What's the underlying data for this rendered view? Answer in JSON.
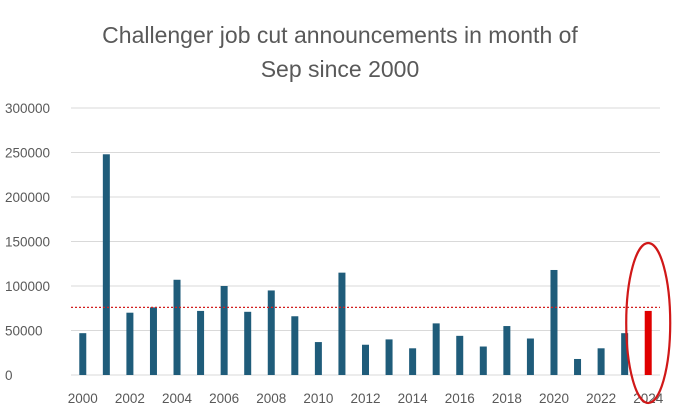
{
  "chart_data": {
    "type": "bar",
    "title_lines": [
      "Challenger job cut announcements in month of",
      "Sep since 2000"
    ],
    "xlabel": "",
    "ylabel": "",
    "ylim": [
      0,
      300000
    ],
    "yticks": [
      0,
      50000,
      100000,
      150000,
      200000,
      250000,
      300000
    ],
    "categories": [
      "2000",
      "2001",
      "2002",
      "2003",
      "2004",
      "2005",
      "2006",
      "2007",
      "2008",
      "2009",
      "2010",
      "2011",
      "2012",
      "2013",
      "2014",
      "2015",
      "2016",
      "2017",
      "2018",
      "2019",
      "2020",
      "2021",
      "2022",
      "2023",
      "2024"
    ],
    "xtick_labels": [
      "2000",
      "2002",
      "2004",
      "2006",
      "2008",
      "2010",
      "2012",
      "2014",
      "2016",
      "2018",
      "2020",
      "2022",
      "2024"
    ],
    "values": [
      47000,
      248000,
      70000,
      76000,
      107000,
      72000,
      100000,
      71000,
      95000,
      66000,
      37000,
      115000,
      34000,
      40000,
      30000,
      58000,
      44000,
      32000,
      55000,
      41000,
      118000,
      18000,
      30000,
      47000,
      72000
    ],
    "reference_line": 76000,
    "grid": true,
    "highlight_category": "2024",
    "colors": {
      "bar": "#1F5C7A",
      "highlight": "#E00000",
      "reference_line": "#D32020",
      "circle": "#D01818",
      "grid": "#D9D9D9",
      "text": "#595959"
    }
  }
}
